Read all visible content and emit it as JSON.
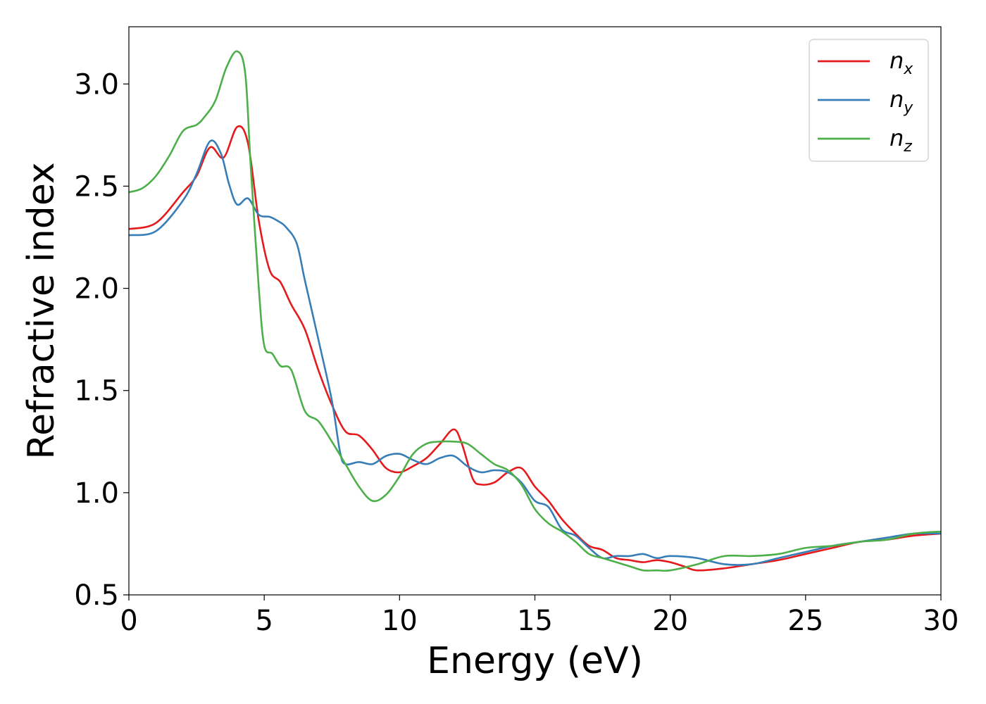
{
  "chart_data": {
    "type": "line",
    "title": "",
    "xlabel": "Energy (eV)",
    "ylabel": "Refractive index",
    "xlim": [
      0,
      30
    ],
    "ylim": [
      0.5,
      3.28
    ],
    "xticks": [
      0,
      5,
      10,
      15,
      20,
      25,
      30
    ],
    "yticks": [
      0.5,
      1.0,
      1.5,
      2.0,
      2.5,
      3.0
    ],
    "xtick_labels": [
      "0",
      "5",
      "10",
      "15",
      "20",
      "25",
      "30"
    ],
    "ytick_labels": [
      "0.5",
      "1.0",
      "1.5",
      "2.0",
      "2.5",
      "3.0"
    ],
    "grid": false,
    "legend_position": "top-right",
    "series": [
      {
        "name": "n_x",
        "label_main": "n",
        "label_sub": "x",
        "color": "#e41a1c",
        "points": [
          [
            0,
            2.29
          ],
          [
            1,
            2.32
          ],
          [
            2,
            2.47
          ],
          [
            2.5,
            2.55
          ],
          [
            3,
            2.69
          ],
          [
            3.5,
            2.64
          ],
          [
            4,
            2.79
          ],
          [
            4.4,
            2.71
          ],
          [
            4.8,
            2.33
          ],
          [
            5.2,
            2.09
          ],
          [
            5.6,
            2.03
          ],
          [
            6,
            1.92
          ],
          [
            6.5,
            1.8
          ],
          [
            7,
            1.6
          ],
          [
            7.5,
            1.43
          ],
          [
            8,
            1.3
          ],
          [
            8.5,
            1.28
          ],
          [
            9,
            1.21
          ],
          [
            9.5,
            1.12
          ],
          [
            10,
            1.1
          ],
          [
            10.5,
            1.13
          ],
          [
            11,
            1.17
          ],
          [
            11.5,
            1.24
          ],
          [
            12,
            1.31
          ],
          [
            12.3,
            1.24
          ],
          [
            12.7,
            1.07
          ],
          [
            13,
            1.04
          ],
          [
            13.5,
            1.05
          ],
          [
            14,
            1.1
          ],
          [
            14.5,
            1.12
          ],
          [
            15,
            1.03
          ],
          [
            15.5,
            0.96
          ],
          [
            16,
            0.87
          ],
          [
            16.5,
            0.8
          ],
          [
            17,
            0.74
          ],
          [
            17.5,
            0.72
          ],
          [
            18,
            0.68
          ],
          [
            18.5,
            0.67
          ],
          [
            19,
            0.66
          ],
          [
            19.5,
            0.67
          ],
          [
            20,
            0.66
          ],
          [
            20.5,
            0.64
          ],
          [
            21,
            0.62
          ],
          [
            22,
            0.63
          ],
          [
            23,
            0.65
          ],
          [
            24,
            0.67
          ],
          [
            25,
            0.7
          ],
          [
            26,
            0.73
          ],
          [
            27,
            0.76
          ],
          [
            28,
            0.77
          ],
          [
            29,
            0.79
          ],
          [
            30,
            0.8
          ]
        ]
      },
      {
        "name": "n_y",
        "label_main": "n",
        "label_sub": "y",
        "color": "#377eb8",
        "points": [
          [
            0,
            2.26
          ],
          [
            1,
            2.28
          ],
          [
            2,
            2.43
          ],
          [
            2.5,
            2.56
          ],
          [
            3,
            2.72
          ],
          [
            3.4,
            2.66
          ],
          [
            3.7,
            2.51
          ],
          [
            4,
            2.41
          ],
          [
            4.4,
            2.44
          ],
          [
            4.8,
            2.36
          ],
          [
            5.2,
            2.35
          ],
          [
            5.5,
            2.33
          ],
          [
            5.8,
            2.3
          ],
          [
            6.2,
            2.22
          ],
          [
            6.5,
            2.04
          ],
          [
            7,
            1.75
          ],
          [
            7.5,
            1.45
          ],
          [
            7.8,
            1.2
          ],
          [
            8,
            1.14
          ],
          [
            8.5,
            1.15
          ],
          [
            9,
            1.14
          ],
          [
            9.5,
            1.18
          ],
          [
            10,
            1.19
          ],
          [
            10.5,
            1.16
          ],
          [
            11,
            1.14
          ],
          [
            11.5,
            1.17
          ],
          [
            12,
            1.18
          ],
          [
            12.5,
            1.13
          ],
          [
            13,
            1.1
          ],
          [
            13.5,
            1.11
          ],
          [
            14,
            1.1
          ],
          [
            14.5,
            1.05
          ],
          [
            15,
            0.96
          ],
          [
            15.5,
            0.93
          ],
          [
            16,
            0.82
          ],
          [
            16.5,
            0.79
          ],
          [
            17,
            0.73
          ],
          [
            17.5,
            0.68
          ],
          [
            18,
            0.69
          ],
          [
            18.5,
            0.69
          ],
          [
            19,
            0.7
          ],
          [
            19.5,
            0.68
          ],
          [
            20,
            0.69
          ],
          [
            21,
            0.68
          ],
          [
            22,
            0.65
          ],
          [
            23,
            0.65
          ],
          [
            24,
            0.68
          ],
          [
            25,
            0.71
          ],
          [
            26,
            0.74
          ],
          [
            27,
            0.76
          ],
          [
            28,
            0.78
          ],
          [
            29,
            0.8
          ],
          [
            30,
            0.8
          ]
        ]
      },
      {
        "name": "n_z",
        "label_main": "n",
        "label_sub": "z",
        "color": "#4daf4a",
        "points": [
          [
            0,
            2.47
          ],
          [
            0.5,
            2.49
          ],
          [
            1,
            2.55
          ],
          [
            1.5,
            2.65
          ],
          [
            2,
            2.77
          ],
          [
            2.5,
            2.8
          ],
          [
            2.8,
            2.84
          ],
          [
            3.2,
            2.92
          ],
          [
            3.6,
            3.08
          ],
          [
            4,
            3.16
          ],
          [
            4.3,
            3.05
          ],
          [
            4.5,
            2.6
          ],
          [
            4.8,
            2.0
          ],
          [
            5,
            1.72
          ],
          [
            5.3,
            1.68
          ],
          [
            5.6,
            1.62
          ],
          [
            6,
            1.6
          ],
          [
            6.5,
            1.4
          ],
          [
            7,
            1.35
          ],
          [
            7.5,
            1.25
          ],
          [
            8,
            1.14
          ],
          [
            8.5,
            1.03
          ],
          [
            9,
            0.96
          ],
          [
            9.5,
            0.99
          ],
          [
            10,
            1.08
          ],
          [
            10.5,
            1.19
          ],
          [
            11,
            1.24
          ],
          [
            11.5,
            1.25
          ],
          [
            12,
            1.25
          ],
          [
            12.5,
            1.24
          ],
          [
            13,
            1.19
          ],
          [
            13.5,
            1.14
          ],
          [
            14,
            1.11
          ],
          [
            14.5,
            1.04
          ],
          [
            15,
            0.92
          ],
          [
            15.5,
            0.85
          ],
          [
            16,
            0.81
          ],
          [
            16.5,
            0.76
          ],
          [
            17,
            0.7
          ],
          [
            17.5,
            0.68
          ],
          [
            18,
            0.66
          ],
          [
            18.5,
            0.64
          ],
          [
            19,
            0.62
          ],
          [
            19.5,
            0.62
          ],
          [
            20,
            0.62
          ],
          [
            21,
            0.65
          ],
          [
            22,
            0.69
          ],
          [
            23,
            0.69
          ],
          [
            24,
            0.7
          ],
          [
            25,
            0.73
          ],
          [
            26,
            0.74
          ],
          [
            27,
            0.76
          ],
          [
            28,
            0.77
          ],
          [
            29,
            0.8
          ],
          [
            30,
            0.81
          ]
        ]
      }
    ]
  }
}
